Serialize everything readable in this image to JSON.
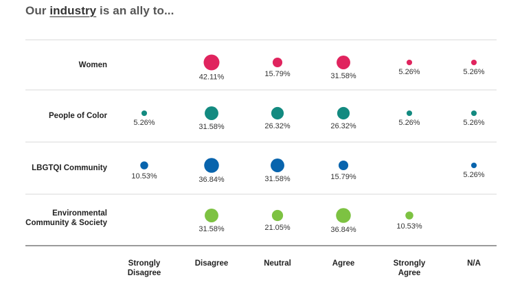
{
  "page": {
    "title_prefix": "Our ",
    "title_underlined": "industry",
    "title_suffix": " is an ally to..."
  },
  "colors": {
    "Women": "#e0245e",
    "People of Color": "#138a80",
    "LBGTQI Community": "#0864ad",
    "Environmental Community & Society": "#7dc242",
    "grid": "#d9d9d9",
    "axis": "#9a9a9a"
  },
  "chart_data": {
    "type": "scatter",
    "columns": [
      "Strongly Disagree",
      "Disagree",
      "Neutral",
      "Agree",
      "Strongly Agree",
      "N/A"
    ],
    "rows": [
      {
        "name": "Women",
        "values": [
          null,
          42.11,
          15.79,
          31.58,
          5.26,
          5.26
        ]
      },
      {
        "name": "People of Color",
        "values": [
          5.26,
          31.58,
          26.32,
          26.32,
          5.26,
          5.26
        ]
      },
      {
        "name": "LBGTQI Community",
        "values": [
          10.53,
          36.84,
          31.58,
          15.79,
          null,
          5.26
        ]
      },
      {
        "name": "Environmental Community & Society",
        "values": [
          null,
          31.58,
          21.05,
          36.84,
          10.53,
          null
        ]
      }
    ],
    "unit": "%"
  }
}
